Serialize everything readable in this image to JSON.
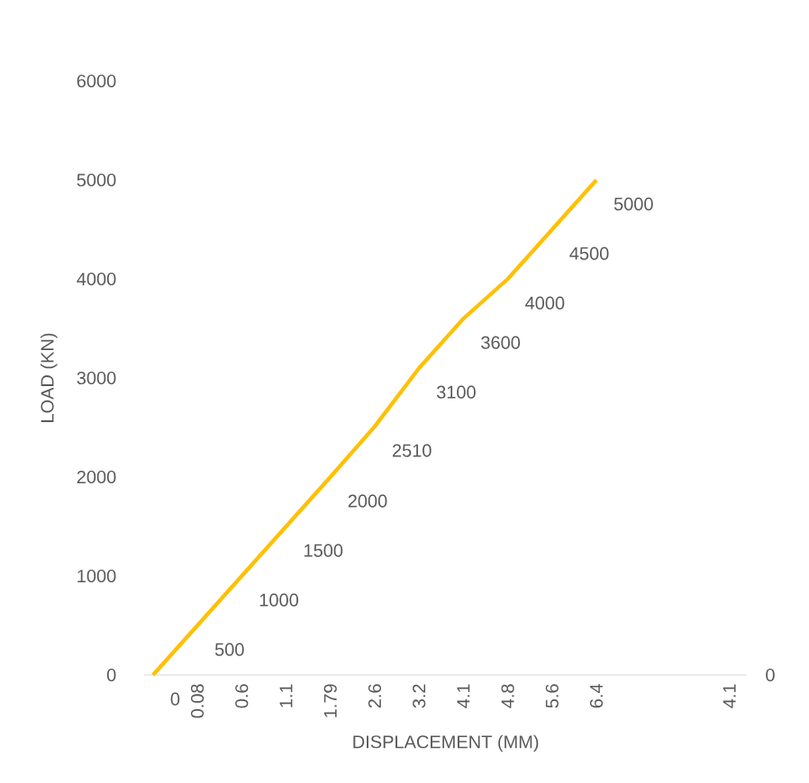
{
  "chart_data": {
    "type": "line",
    "xlabel": "DISPLACEMENT (MM)",
    "ylabel": "LOAD (KN)",
    "categories": [
      null,
      "0.08",
      "0.6",
      "1.1",
      "1.79",
      "2.6",
      "3.2",
      "4.1",
      "4.8",
      "5.6",
      "6.4",
      null,
      null,
      "4.1"
    ],
    "series": [
      {
        "color": "#ffc000",
        "values": [
          0,
          500,
          1000,
          1500,
          2000,
          2510,
          3100,
          3600,
          4000,
          4500,
          5000,
          null,
          null,
          null
        ]
      }
    ],
    "ylim": [
      0,
      6000
    ],
    "yticks": [
      0,
      1000,
      2000,
      3000,
      4000,
      5000,
      6000
    ],
    "annotations": [
      "0"
    ],
    "data_labels": true
  }
}
